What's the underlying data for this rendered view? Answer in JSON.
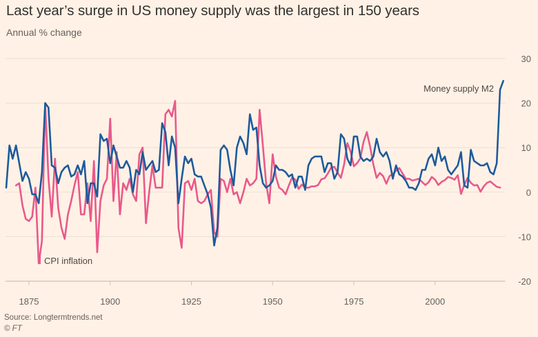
{
  "title": "Last year’s surge in US money supply was the largest in 150 years",
  "subtitle": "Annual % change",
  "source": "Source: Longtermtrends.net",
  "copyright": "© FT",
  "chart_data": {
    "type": "line",
    "title": "Last year’s surge in US money supply was the largest in 150 years",
    "ylabel": "Annual % change",
    "xlim": [
      1868,
      2021
    ],
    "ylim": [
      -20,
      30
    ],
    "yticks": [
      30,
      20,
      10,
      0,
      -10,
      -20
    ],
    "xticks": [
      1875,
      1900,
      1925,
      1950,
      1975,
      2000
    ],
    "grid": true,
    "y_axis_side": "right",
    "series": [
      {
        "name": "Money supply M2",
        "color": "#1d5a9c",
        "start_year": 1868,
        "values": [
          1,
          10.5,
          7.5,
          10.5,
          6.5,
          2.5,
          4.5,
          3,
          -0.5,
          -0.5,
          -2.5,
          4.5,
          20,
          19,
          6,
          5.5,
          2,
          4.5,
          5.5,
          6,
          3.5,
          4,
          6,
          4,
          7,
          -2.5,
          2,
          2,
          -1,
          13,
          11.5,
          12,
          6.5,
          10.5,
          8,
          5.5,
          5.5,
          7,
          5.5,
          0,
          5,
          4,
          9,
          5,
          6,
          7,
          4.5,
          5,
          15.5,
          13.5,
          6,
          12.5,
          10,
          -2.5,
          3,
          8,
          6.5,
          7.5,
          4,
          3.5,
          3.5,
          1.5,
          -0.5,
          -3.5,
          -12,
          -8,
          9.5,
          10.5,
          9.5,
          5,
          1.5,
          10,
          12.5,
          11,
          8.5,
          17.5,
          14,
          14.5,
          6,
          2,
          1,
          1.5,
          2.5,
          6,
          5,
          5,
          4.5,
          3.5,
          4,
          1,
          3.5,
          3.5,
          0.5,
          6,
          7.5,
          8,
          8,
          8,
          4.5,
          6.5,
          6.5,
          3,
          4.5,
          13,
          12,
          7.5,
          6,
          12.5,
          12.5,
          8,
          7,
          7.5,
          7,
          8,
          12,
          9,
          8,
          9,
          7,
          3,
          6,
          4,
          3.5,
          2.5,
          1,
          1,
          0.5,
          2,
          5,
          5,
          7.5,
          8.5,
          6,
          10,
          7,
          8,
          5,
          4,
          5,
          6,
          9,
          1.5,
          1,
          9.5,
          7,
          6.5,
          6,
          6,
          6.5,
          4.5,
          4,
          6.5,
          23,
          25
        ]
      },
      {
        "name": "CPI inflation",
        "color": "#e9598a",
        "start_year": 1871,
        "values": [
          1.5,
          2,
          -3,
          -6,
          -6.5,
          -5.5,
          1,
          -16,
          -11,
          20,
          3,
          -5.5,
          7.5,
          -3.5,
          -8,
          -10.5,
          -5,
          -2,
          1.5,
          4.5,
          -5,
          -5,
          2,
          -6.5,
          7,
          -13.5,
          -2,
          1.5,
          3,
          16.5,
          -2,
          9,
          -5,
          2,
          0.5,
          3,
          -0.5,
          -2,
          8.5,
          10,
          -7,
          0,
          6,
          1,
          1,
          1,
          17.5,
          18.5,
          17,
          20.5,
          -8,
          -12.5,
          2,
          2.5,
          0.5,
          3,
          -2,
          -2.5,
          -2,
          -0.5,
          0.5,
          -9,
          -10,
          3,
          2.5,
          0,
          3,
          -0.5,
          0,
          -2.5,
          0,
          3,
          1.5,
          2,
          3,
          18.5,
          10.5,
          2,
          -2.5,
          8.5,
          3.5,
          1,
          0.5,
          -0.5,
          1.5,
          3.3,
          2.8,
          0.7,
          1.7,
          1,
          1,
          1.3,
          1.3,
          1.6,
          2.9,
          3.1,
          4.2,
          5.5,
          5.7,
          4.4,
          3.2,
          6.2,
          11,
          9.1,
          5.8,
          6.5,
          7.6,
          11.3,
          13.5,
          10.3,
          6.2,
          3.2,
          4.3,
          3.6,
          1.9,
          3.6,
          4.1,
          4.8,
          5.4,
          4.2,
          3,
          3,
          2.6,
          2.8,
          3,
          2.3,
          1.6,
          2.2,
          3.4,
          2.8,
          1.6,
          2.3,
          2.7,
          3.4,
          3.2,
          2.8,
          3.8,
          -0.4,
          1.6,
          3.2,
          2.1,
          1.5,
          1.6,
          0.1,
          1.3,
          2.1,
          2.4,
          1.8,
          1.2,
          1
        ]
      }
    ],
    "annotations": [
      "Money supply M2",
      "CPI inflation"
    ]
  }
}
